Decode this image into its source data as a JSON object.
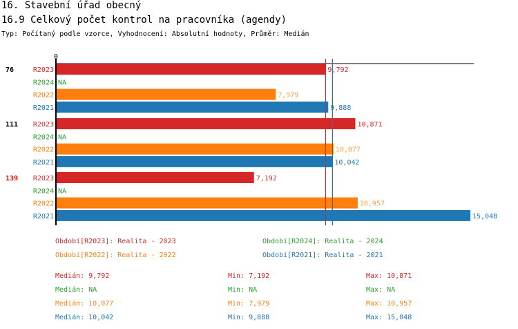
{
  "header": {
    "title": "16. Stavební úřad obecný",
    "subtitle": "16.9 Celkový počet kontrol na pracovníka (agendy)",
    "info": "Typ: Počítaný podle vzorce, Vyhodnocení: Absolutní hodnoty, Průměr: Medián"
  },
  "chart_data": {
    "type": "bar",
    "orientation": "horizontal",
    "xlim": [
      0,
      15048
    ],
    "x_tick_labels": [
      "0"
    ],
    "series_colors": {
      "R2023": "#d62728",
      "R2024": "#2ca02c",
      "R2022": "#ff7f0e",
      "R2021": "#1f77b4"
    },
    "groups": [
      {
        "label": "76",
        "highlight": false,
        "rows": [
          {
            "series": "R2023",
            "value": 9792,
            "label": "9,792"
          },
          {
            "series": "R2024",
            "value": null,
            "label": "NA"
          },
          {
            "series": "R2022",
            "value": 7979,
            "label": "7,979"
          },
          {
            "series": "R2021",
            "value": 9888,
            "label": "9,888"
          }
        ]
      },
      {
        "label": "111",
        "highlight": false,
        "rows": [
          {
            "series": "R2023",
            "value": 10871,
            "label": "10,871"
          },
          {
            "series": "R2024",
            "value": null,
            "label": "NA"
          },
          {
            "series": "R2022",
            "value": 10077,
            "label": "10,077"
          },
          {
            "series": "R2021",
            "value": 10042,
            "label": "10,042"
          }
        ]
      },
      {
        "label": "139",
        "highlight": true,
        "rows": [
          {
            "series": "R2023",
            "value": 7192,
            "label": "7,192"
          },
          {
            "series": "R2024",
            "value": null,
            "label": "NA"
          },
          {
            "series": "R2022",
            "value": 10957,
            "label": "10,957"
          },
          {
            "series": "R2021",
            "value": 15048,
            "label": "15,048"
          }
        ]
      }
    ],
    "median_lines": [
      {
        "series": "R2023",
        "value": 9792
      },
      {
        "series": "R2021",
        "value": 10042
      }
    ],
    "legend": [
      {
        "series": "R2023",
        "text": "Období[R2023]: Realita - 2023"
      },
      {
        "series": "R2024",
        "text": "Období[R2024]: Realita - 2024"
      },
      {
        "series": "R2022",
        "text": "Období[R2022]: Realita - 2022"
      },
      {
        "series": "R2021",
        "text": "Období[R2021]: Realita - 2021"
      }
    ],
    "stats": [
      {
        "series": "R2023",
        "median": "Medián: 9,792",
        "min": "Min: 7,192",
        "max": "Max: 10,871"
      },
      {
        "series": "R2024",
        "median": "Medián: NA",
        "min": "Min: NA",
        "max": "Max: NA"
      },
      {
        "series": "R2022",
        "median": "Medián: 10,077",
        "min": "Min: 7,979",
        "max": "Max: 10,957"
      },
      {
        "series": "R2021",
        "median": "Medián: 10,042",
        "min": "Min: 9,888",
        "max": "Max: 15,048"
      }
    ]
  }
}
